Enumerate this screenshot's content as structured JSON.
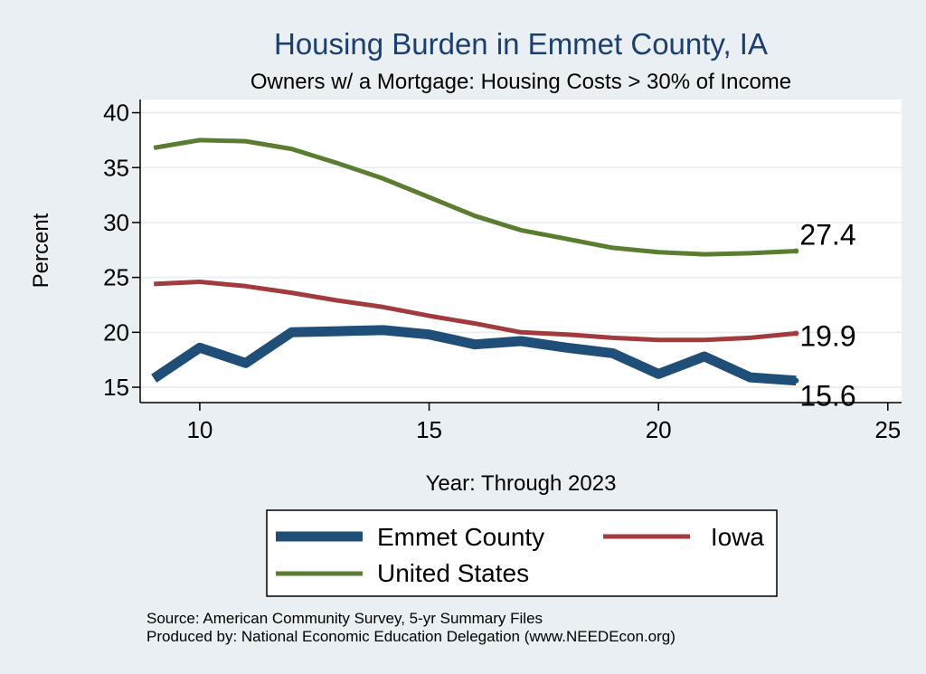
{
  "chart_data": {
    "type": "line",
    "title": "Housing Burden in Emmet County, IA",
    "subtitle": "Owners w/ a Mortgage: Housing Costs > 30% of Income",
    "xlabel": "Year: Through 2023",
    "ylabel": "Percent",
    "xlim": [
      8.7,
      25.3
    ],
    "ylim": [
      13.6,
      41.2
    ],
    "xticks": [
      10,
      15,
      20,
      25
    ],
    "yticks": [
      15,
      20,
      25,
      30,
      35,
      40
    ],
    "grid": true,
    "legend_position": "bottom",
    "series": [
      {
        "name": "Emmet County",
        "color": "#1f4e79",
        "x": [
          9,
          10,
          11,
          12,
          13,
          14,
          15,
          16,
          17,
          18,
          19,
          20,
          21,
          22,
          23
        ],
        "values": [
          15.8,
          18.6,
          17.2,
          20.0,
          20.1,
          20.2,
          19.8,
          18.9,
          19.2,
          18.6,
          18.1,
          16.2,
          17.8,
          15.9,
          15.6
        ],
        "end_label": "15.6"
      },
      {
        "name": "Iowa",
        "color": "#a23b3e",
        "x": [
          9,
          10,
          11,
          12,
          13,
          14,
          15,
          16,
          17,
          18,
          19,
          20,
          21,
          22,
          23
        ],
        "values": [
          24.4,
          24.6,
          24.2,
          23.6,
          22.9,
          22.3,
          21.5,
          20.8,
          20.0,
          19.8,
          19.5,
          19.3,
          19.3,
          19.5,
          19.9
        ],
        "end_label": "19.9"
      },
      {
        "name": "United States",
        "color": "#5a7d2f",
        "x": [
          9,
          10,
          11,
          12,
          13,
          14,
          15,
          16,
          17,
          18,
          19,
          20,
          21,
          22,
          23
        ],
        "values": [
          36.8,
          37.5,
          37.4,
          36.7,
          35.4,
          34.0,
          32.3,
          30.6,
          29.3,
          28.5,
          27.7,
          27.3,
          27.1,
          27.2,
          27.4
        ],
        "end_label": "27.4"
      }
    ],
    "source_note": "Source: American Community Survey, 5-yr Summary Files",
    "produced_note": "Produced by: National Economic Education Delegation (www.NEEDEcon.org)"
  }
}
